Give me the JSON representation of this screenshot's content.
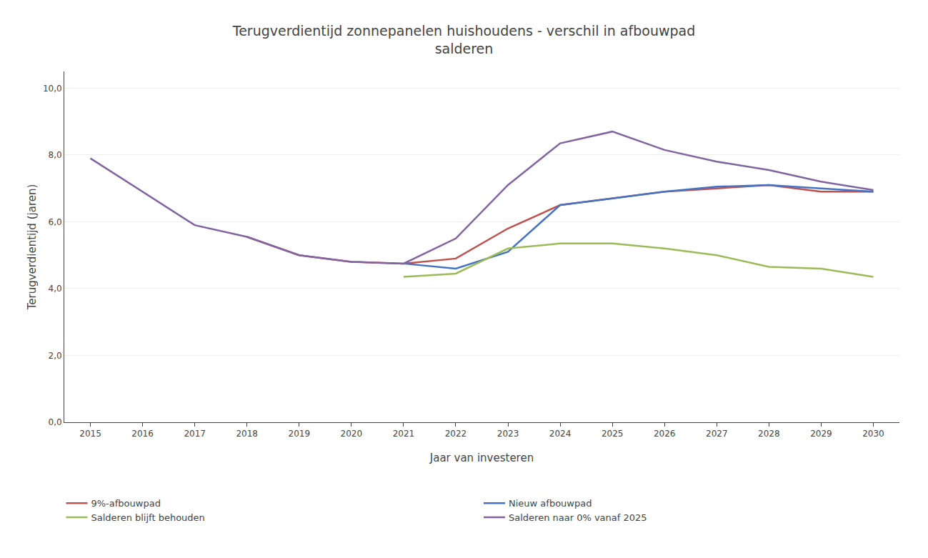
{
  "chart_data": {
    "type": "line",
    "title": "Terugverdientijd zonnepanelen huishoudens - verschil in afbouwpad\nsalderen",
    "x_label": "Jaar van investeren",
    "y_label": "Terugverdientijd (jaren)",
    "x": [
      2015,
      2016,
      2017,
      2018,
      2019,
      2020,
      2021,
      2022,
      2023,
      2024,
      2025,
      2026,
      2027,
      2028,
      2029,
      2030
    ],
    "series": [
      {
        "name": "9%-afbouwpad",
        "color": "#C0504D",
        "values": [
          null,
          null,
          null,
          5.55,
          5.0,
          4.8,
          4.75,
          4.9,
          5.8,
          6.5,
          6.7,
          6.9,
          7.0,
          7.1,
          6.9,
          6.9
        ]
      },
      {
        "name": "Nieuw afbouwpad",
        "color": "#4472C4",
        "values": [
          null,
          null,
          null,
          null,
          null,
          null,
          4.75,
          4.6,
          5.1,
          6.5,
          6.7,
          6.9,
          7.05,
          7.1,
          7.0,
          6.9
        ]
      },
      {
        "name": "Salderen blijft behouden",
        "color": "#9BBB59",
        "values": [
          null,
          null,
          null,
          null,
          null,
          null,
          4.35,
          4.45,
          5.2,
          5.35,
          5.35,
          5.2,
          5.0,
          4.65,
          4.6,
          4.35
        ]
      },
      {
        "name": "Salderen naar 0% vanaf 2025",
        "color": "#8064A2",
        "values": [
          7.9,
          6.9,
          5.9,
          5.55,
          5.0,
          4.8,
          4.75,
          5.5,
          7.1,
          8.35,
          8.7,
          8.15,
          7.8,
          7.55,
          7.2,
          6.95
        ]
      }
    ],
    "xlim": [
      2014.5,
      2030.5
    ],
    "xticks": [
      2015,
      2016,
      2017,
      2018,
      2019,
      2020,
      2021,
      2022,
      2023,
      2024,
      2025,
      2026,
      2027,
      2028,
      2029,
      2030
    ],
    "ylim": [
      0.0,
      10.5
    ],
    "yticks": [
      {
        "value": 0.0,
        "label": "0,0"
      },
      {
        "value": 2.0,
        "label": "2,0"
      },
      {
        "value": 4.0,
        "label": "4,0"
      },
      {
        "value": 6.0,
        "label": "6,0"
      },
      {
        "value": 8.0,
        "label": "8,0"
      },
      {
        "value": 10.0,
        "label": "10,0"
      }
    ],
    "grid": "y",
    "legend": "bottom"
  }
}
